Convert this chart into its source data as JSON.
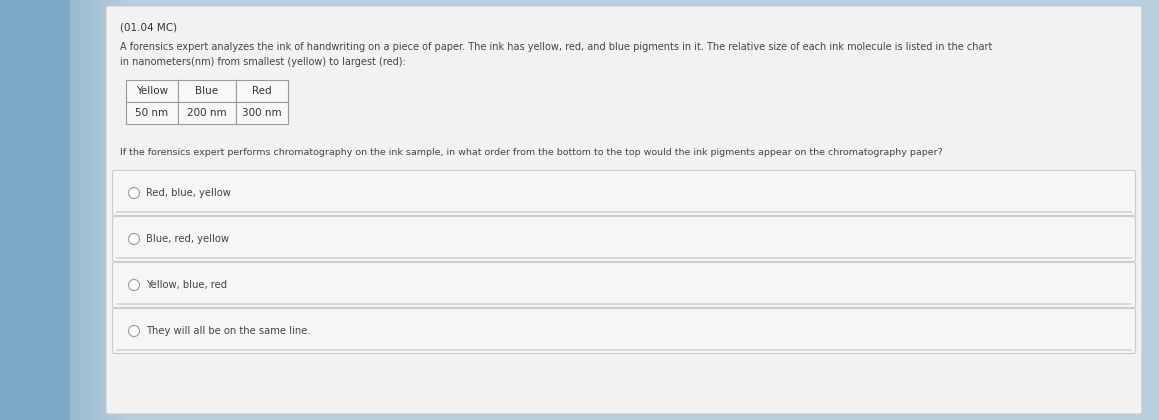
{
  "title": "(01.04 MC)",
  "paragraph1": "A forensics expert analyzes the ink of handwriting on a piece of paper. The ink has yellow, red, and blue pigments in it. The relative size of each ink molecule is listed in the chart",
  "paragraph2": "in nanometers(nm) from smallest (yellow) to largest (red):",
  "table_headers": [
    "Yellow",
    "Blue",
    "Red"
  ],
  "table_values": [
    "50 nm",
    "200 nm",
    "300 nm"
  ],
  "question": "If the forensics expert performs chromatography on the ink sample, in what order from the bottom to the top would the ink pigments appear on the chromatography paper?",
  "options": [
    "Red, blue, yellow",
    "Blue, red, yellow",
    "Yellow, blue, red",
    "They will all be on the same line."
  ],
  "selected_option": 0,
  "bg_color_left": "#a8c4d8",
  "bg_color_right": "#c8dae8",
  "panel_bg": "#f0f0f0",
  "panel_border": "#c8c8c8",
  "option_bg": "#f4f4f4",
  "option_border": "#cccccc",
  "title_fontsize": 7.5,
  "para_fontsize": 7.0,
  "table_fontsize": 7.5,
  "question_fontsize": 6.8,
  "option_fontsize": 7.2
}
